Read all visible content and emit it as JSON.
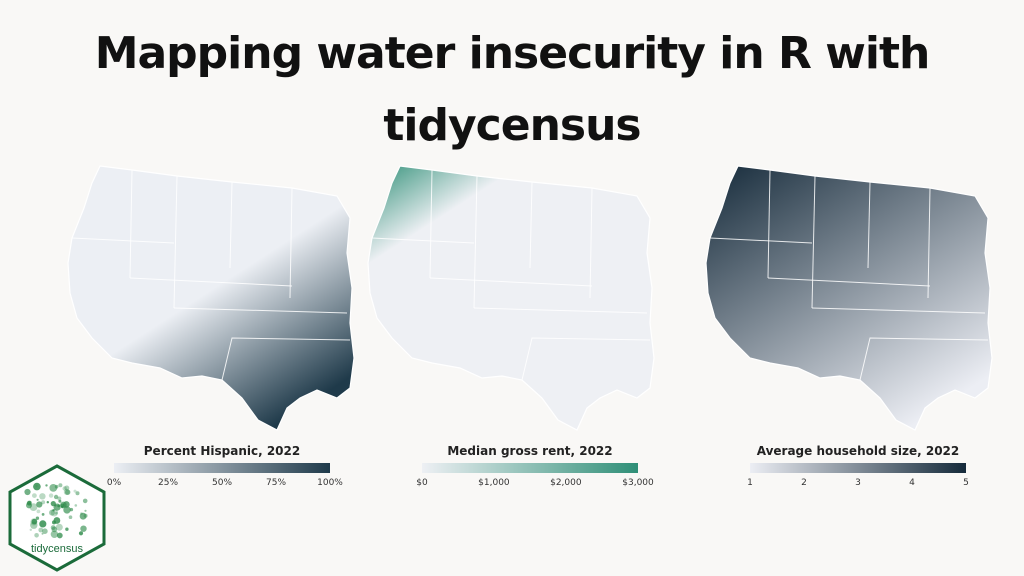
{
  "title_lines": [
    "Mapping water insecurity in R with",
    "tidycensus"
  ],
  "maps": [
    {
      "legend_title": "Percent Hispanic, 2022",
      "ticks": [
        "0%",
        "25%",
        "50%",
        "75%",
        "100%"
      ],
      "colors": [
        "#eceff4",
        "#1f3a4a"
      ]
    },
    {
      "legend_title": "Median gross rent, 2022",
      "ticks": [
        "$0",
        "$1,000",
        "$2,000",
        "$3,000"
      ],
      "colors": [
        "#eef0f4",
        "#2f8f77"
      ]
    },
    {
      "legend_title": "Average household size, 2022",
      "ticks": [
        "1",
        "2",
        "3",
        "4",
        "5"
      ],
      "colors": [
        "#eceef4",
        "#152a3a"
      ]
    }
  ],
  "logo": {
    "label": "tidycensus",
    "colors": {
      "border": "#1b6b3a",
      "accent": "#2e8b4a"
    }
  }
}
